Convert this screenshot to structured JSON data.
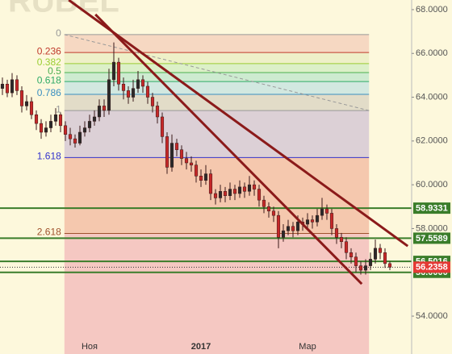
{
  "chart_data": {
    "type": "candlestick",
    "watermark": "RUBEL",
    "categories": [
      null,
      null,
      null,
      null,
      null,
      null,
      null,
      null,
      null,
      null,
      null,
      null,
      null,
      null,
      null,
      null,
      null,
      null,
      "Ноя",
      null,
      null,
      null,
      null,
      null,
      null,
      null,
      null,
      null,
      null,
      null,
      null,
      null,
      null,
      null,
      null,
      null,
      null,
      null,
      null,
      null,
      null,
      "2017",
      null,
      null,
      null,
      null,
      null,
      null,
      null,
      null,
      null,
      null,
      null,
      null,
      null,
      null,
      null,
      null,
      null,
      null,
      null,
      null,
      null,
      "Мар",
      null,
      null,
      null,
      null,
      null,
      null,
      null,
      null,
      null,
      null,
      null,
      null,
      null,
      null,
      null,
      null,
      null
    ],
    "open": [
      64.4,
      64.6,
      64.2,
      64.8,
      64.3,
      63.6,
      63.8,
      63.2,
      62.8,
      62.4,
      62.6,
      62.9,
      63.2,
      62.7,
      62.3,
      62.1,
      61.9,
      62.4,
      62.6,
      62.9,
      63.1,
      63.6,
      63.4,
      64.8,
      65.6,
      64.6,
      64.3,
      64.0,
      64.4,
      64.8,
      64.5,
      64.0,
      63.6,
      63.1,
      62.2,
      60.8,
      61.9,
      61.6,
      61.2,
      61.0,
      60.9,
      60.4,
      60.2,
      60.5,
      59.6,
      59.4,
      59.7,
      59.5,
      59.8,
      59.6,
      59.9,
      59.7,
      60.0,
      59.8,
      59.3,
      59.0,
      58.8,
      58.6,
      57.6,
      57.9,
      58.1,
      57.9,
      58.3,
      58.2,
      58.4,
      58.3,
      58.6,
      58.9,
      58.7,
      58.0,
      57.6,
      57.4,
      56.9,
      56.7,
      56.3,
      56.1,
      56.3,
      56.6,
      57.1,
      56.9,
      56.4
    ],
    "high": [
      64.9,
      64.8,
      65.1,
      65.0,
      64.5,
      64.1,
      64.0,
      63.4,
      63.0,
      62.9,
      63.2,
      63.5,
      63.3,
      62.9,
      62.6,
      62.3,
      62.7,
      62.9,
      63.2,
      63.4,
      63.9,
      63.9,
      65.3,
      66.5,
      65.8,
      64.9,
      64.5,
      64.8,
      65.2,
      65.0,
      64.7,
      64.2,
      63.8,
      63.3,
      62.4,
      62.3,
      62.1,
      61.8,
      61.5,
      61.3,
      61.1,
      60.7,
      60.9,
      60.7,
      59.8,
      60.0,
      59.9,
      60.1,
      60.0,
      60.2,
      60.1,
      60.4,
      60.2,
      60.0,
      59.5,
      59.2,
      59.0,
      58.8,
      58.2,
      58.4,
      58.3,
      58.6,
      58.5,
      58.7,
      58.6,
      58.9,
      59.4,
      59.1,
      58.9,
      58.2,
      57.8,
      57.6,
      57.1,
      56.9,
      56.5,
      56.6,
      56.9,
      57.5,
      57.3,
      57.1,
      56.5
    ],
    "low": [
      64.1,
      64.0,
      64.0,
      64.1,
      63.3,
      63.4,
      63.0,
      62.5,
      62.1,
      62.2,
      62.4,
      62.7,
      62.4,
      62.0,
      61.8,
      61.7,
      61.8,
      62.2,
      62.4,
      62.7,
      62.9,
      63.1,
      63.2,
      64.5,
      64.3,
      63.9,
      63.7,
      63.8,
      64.2,
      64.2,
      63.7,
      63.3,
      62.8,
      61.9,
      60.5,
      60.6,
      61.3,
      60.9,
      60.7,
      60.6,
      60.1,
      59.9,
      60.0,
      59.3,
      59.1,
      59.2,
      59.2,
      59.3,
      59.3,
      59.4,
      59.4,
      59.5,
      59.5,
      59.0,
      58.7,
      58.5,
      58.3,
      57.1,
      57.4,
      57.7,
      57.6,
      57.7,
      57.9,
      58.0,
      58.0,
      58.1,
      58.4,
      58.4,
      57.7,
      57.3,
      57.1,
      56.6,
      56.4,
      56.0,
      55.9,
      55.9,
      56.1,
      56.4,
      56.6,
      56.2,
      56.1
    ],
    "close": [
      64.6,
      64.2,
      64.8,
      64.3,
      63.6,
      63.8,
      63.2,
      62.8,
      62.4,
      62.6,
      62.9,
      63.2,
      62.7,
      62.3,
      62.1,
      61.9,
      62.4,
      62.6,
      62.9,
      63.1,
      63.6,
      63.4,
      64.8,
      65.6,
      64.6,
      64.3,
      64.0,
      64.4,
      64.8,
      64.5,
      64.0,
      63.6,
      63.1,
      62.2,
      60.8,
      61.9,
      61.6,
      61.2,
      61.0,
      60.9,
      60.4,
      60.2,
      60.5,
      59.6,
      59.4,
      59.7,
      59.5,
      59.8,
      59.6,
      59.9,
      59.7,
      60.0,
      59.8,
      59.3,
      59.0,
      58.8,
      58.6,
      57.6,
      57.9,
      58.1,
      57.9,
      58.3,
      58.2,
      58.4,
      58.3,
      58.6,
      58.9,
      58.7,
      58.0,
      57.6,
      57.4,
      56.9,
      56.7,
      56.3,
      56.1,
      56.3,
      56.6,
      57.1,
      56.9,
      56.4,
      56.2358
    ],
    "up_color": "#2a2a2a",
    "down_color": "#c62828",
    "xlim": [
      -0.5,
      84.5
    ],
    "ylim": [
      52.97,
      68.44
    ],
    "yticks": [
      {
        "value": 68,
        "label": "68.0000"
      },
      {
        "value": 66,
        "label": "66.0000"
      },
      {
        "value": 64,
        "label": "64.0000"
      },
      {
        "value": 62,
        "label": "62.0000"
      },
      {
        "value": 60,
        "label": "60.0000"
      },
      {
        "value": 58,
        "label": "58.0000"
      },
      {
        "value": 54,
        "label": "54.0000"
      }
    ],
    "fib": {
      "x": [
        12.8,
        75.7
      ],
      "y": [
        66.86,
        63.39
      ],
      "levels": [
        0,
        0.236,
        0.382,
        0.5,
        0.618,
        0.786,
        1,
        1.618,
        2.618
      ],
      "line_colors": [
        "#999999",
        "#c0392b",
        "#9acd32",
        "#4caf50",
        "#2eaa66",
        "#3a8fc0",
        "#999999",
        "#3333cc",
        "#a0522d"
      ],
      "band_colors": [
        "#f6d8c2",
        "#eef0c8",
        "#dcf0c8",
        "#cdebd0",
        "#d2e8e0",
        "#e2dcc8",
        "#dcd0d6",
        "#f5c8ae",
        "#f5c8c2"
      ]
    },
    "trendlines": [
      {
        "x": [
          13.7,
          83.7
        ],
        "y": [
          68.44,
          57.2
        ]
      },
      {
        "x": [
          19.2,
          74.2
        ],
        "y": [
          67.78,
          55.47
        ]
      }
    ],
    "trend_color": "#8b1a1a",
    "price_levels": [
      58.9331,
      57.5589,
      56.5016,
      {
        "value": 56,
        "label": "56.0000"
      }
    ],
    "level_color": "#3a7d2a",
    "last_price": 56.2358,
    "last_price_color": "#e53935"
  }
}
